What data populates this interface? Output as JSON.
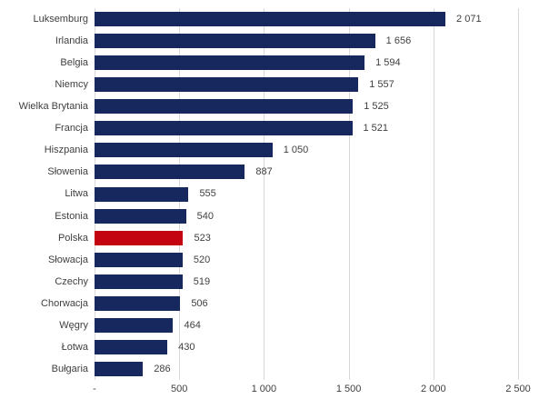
{
  "chart_data": {
    "type": "bar",
    "orientation": "horizontal",
    "title": "",
    "xlabel": "",
    "ylabel": "",
    "xlim": [
      0,
      2500
    ],
    "grid": "vertical",
    "legend": "none",
    "categories": [
      "Luksemburg",
      "Irlandia",
      "Belgia",
      "Niemcy",
      "Wielka Brytania",
      "Francja",
      "Hiszpania",
      "Słowenia",
      "Litwa",
      "Estonia",
      "Polska",
      "Słowacja",
      "Czechy",
      "Chorwacja",
      "Węgry",
      "Łotwa",
      "Bułgaria"
    ],
    "values": [
      2071,
      1656,
      1594,
      1557,
      1525,
      1521,
      1050,
      887,
      555,
      540,
      523,
      520,
      519,
      506,
      464,
      430,
      286
    ],
    "value_labels": [
      "2 071",
      "1 656",
      "1 594",
      "1 557",
      "1 525",
      "1 521",
      "1 050",
      "887",
      "555",
      "540",
      "523",
      "520",
      "519",
      "506",
      "464",
      "430",
      "286"
    ],
    "highlight_category": "Polska",
    "x_ticks": {
      "values": [
        0,
        500,
        1000,
        1500,
        2000,
        2500
      ],
      "labels": [
        "-",
        "500",
        "1 000",
        "1 500",
        "2 000",
        "2 500"
      ]
    },
    "colors": {
      "bar": "#16285E",
      "highlight": "#C30512",
      "gridline": "#D9D9D9",
      "text": "#404040"
    }
  }
}
